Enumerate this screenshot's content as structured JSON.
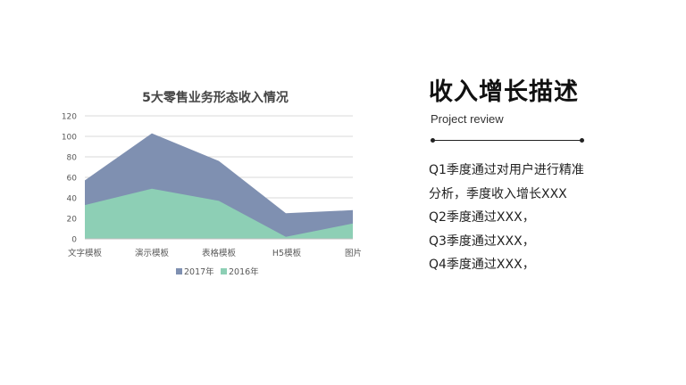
{
  "chart_data": {
    "type": "area",
    "title": "5大零售业务形态收入情况",
    "categories": [
      "文字模板",
      "演示模板",
      "表格模板",
      "H5模板",
      "图片"
    ],
    "series": [
      {
        "name": "2017年",
        "values": [
          57,
          103,
          76,
          25,
          28
        ],
        "color": "#7f90b1"
      },
      {
        "name": "2016年",
        "values": [
          33,
          49,
          37,
          2,
          15
        ],
        "color": "#8dcfb5"
      }
    ],
    "ylim": [
      0,
      120
    ],
    "yticks": [
      0,
      20,
      40,
      60,
      80,
      100,
      120
    ],
    "grid": true,
    "legend": "bottom"
  },
  "panel": {
    "title": "收入增长描述",
    "subtitle": "Project review",
    "lines": [
      "Q1季度通过对用户进行精准",
      "分析，季度收入增长XXX",
      "Q2季度通过XXX，",
      "Q3季度通过XXX，",
      "Q4季度通过XXX，"
    ]
  }
}
